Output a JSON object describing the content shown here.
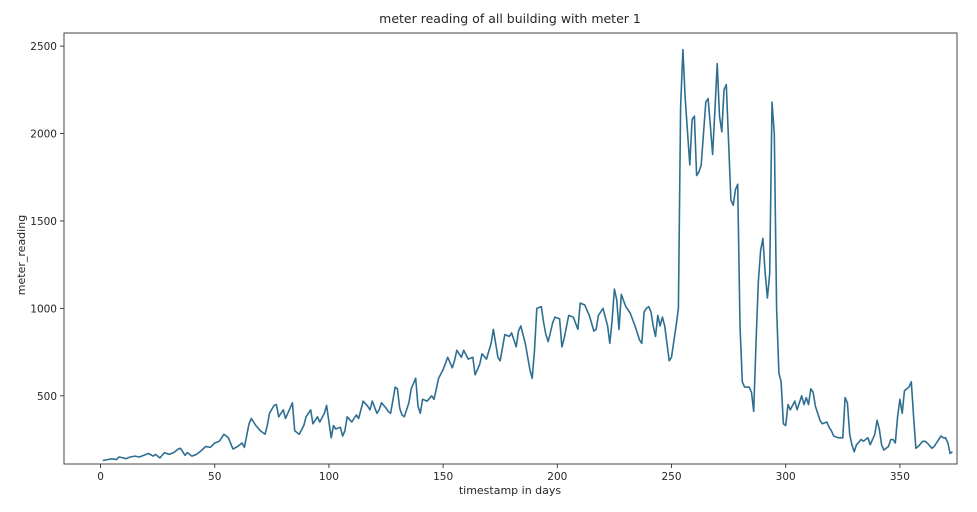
{
  "chart_data": {
    "type": "line",
    "title": "meter reading of all building with meter 1",
    "xlabel": "timestamp in days",
    "ylabel": "meter_reading",
    "xlim": [
      -16,
      375
    ],
    "ylim": [
      110,
      2575
    ],
    "xticks": [
      0,
      50,
      100,
      150,
      200,
      250,
      300,
      350
    ],
    "yticks": [
      500,
      1000,
      1500,
      2000,
      2500
    ],
    "grid": false,
    "line_color": "#2e6f91",
    "series": [
      {
        "points": [
          [
            1,
            130
          ],
          [
            3,
            135
          ],
          [
            5,
            140
          ],
          [
            7,
            135
          ],
          [
            8,
            150
          ],
          [
            10,
            145
          ],
          [
            11,
            140
          ],
          [
            13,
            150
          ],
          [
            15,
            155
          ],
          [
            17,
            150
          ],
          [
            19,
            160
          ],
          [
            21,
            170
          ],
          [
            23,
            155
          ],
          [
            24,
            165
          ],
          [
            26,
            145
          ],
          [
            28,
            175
          ],
          [
            30,
            165
          ],
          [
            32,
            175
          ],
          [
            34,
            195
          ],
          [
            35,
            200
          ],
          [
            37,
            160
          ],
          [
            38,
            175
          ],
          [
            40,
            155
          ],
          [
            42,
            165
          ],
          [
            44,
            185
          ],
          [
            46,
            210
          ],
          [
            48,
            205
          ],
          [
            50,
            230
          ],
          [
            52,
            240
          ],
          [
            54,
            280
          ],
          [
            56,
            260
          ],
          [
            58,
            195
          ],
          [
            60,
            210
          ],
          [
            62,
            230
          ],
          [
            63,
            205
          ],
          [
            65,
            340
          ],
          [
            66,
            370
          ],
          [
            68,
            330
          ],
          [
            70,
            300
          ],
          [
            72,
            280
          ],
          [
            73,
            330
          ],
          [
            74,
            400
          ],
          [
            76,
            445
          ],
          [
            77,
            450
          ],
          [
            78,
            380
          ],
          [
            80,
            420
          ],
          [
            81,
            370
          ],
          [
            82,
            400
          ],
          [
            84,
            460
          ],
          [
            85,
            300
          ],
          [
            87,
            280
          ],
          [
            89,
            330
          ],
          [
            90,
            380
          ],
          [
            92,
            420
          ],
          [
            93,
            340
          ],
          [
            95,
            380
          ],
          [
            96,
            350
          ],
          [
            98,
            400
          ],
          [
            99,
            445
          ],
          [
            101,
            260
          ],
          [
            102,
            330
          ],
          [
            103,
            310
          ],
          [
            105,
            320
          ],
          [
            106,
            270
          ],
          [
            107,
            300
          ],
          [
            108,
            380
          ],
          [
            110,
            350
          ],
          [
            112,
            390
          ],
          [
            113,
            370
          ],
          [
            115,
            470
          ],
          [
            117,
            440
          ],
          [
            118,
            420
          ],
          [
            119,
            470
          ],
          [
            121,
            400
          ],
          [
            122,
            420
          ],
          [
            123,
            460
          ],
          [
            125,
            430
          ],
          [
            126,
            410
          ],
          [
            127,
            400
          ],
          [
            129,
            550
          ],
          [
            130,
            540
          ],
          [
            131,
            430
          ],
          [
            132,
            390
          ],
          [
            133,
            380
          ],
          [
            135,
            460
          ],
          [
            136,
            540
          ],
          [
            138,
            600
          ],
          [
            139,
            440
          ],
          [
            140,
            400
          ],
          [
            141,
            480
          ],
          [
            143,
            470
          ],
          [
            145,
            500
          ],
          [
            146,
            480
          ],
          [
            148,
            600
          ],
          [
            150,
            650
          ],
          [
            152,
            720
          ],
          [
            154,
            660
          ],
          [
            155,
            700
          ],
          [
            156,
            760
          ],
          [
            158,
            720
          ],
          [
            159,
            760
          ],
          [
            161,
            710
          ],
          [
            163,
            720
          ],
          [
            164,
            620
          ],
          [
            166,
            680
          ],
          [
            167,
            740
          ],
          [
            169,
            710
          ],
          [
            171,
            800
          ],
          [
            172,
            880
          ],
          [
            174,
            720
          ],
          [
            175,
            700
          ],
          [
            177,
            850
          ],
          [
            179,
            840
          ],
          [
            180,
            860
          ],
          [
            182,
            780
          ],
          [
            183,
            870
          ],
          [
            184,
            900
          ],
          [
            186,
            800
          ],
          [
            188,
            650
          ],
          [
            189,
            600
          ],
          [
            190,
            760
          ],
          [
            191,
            1000
          ],
          [
            193,
            1010
          ],
          [
            194,
            920
          ],
          [
            195,
            850
          ],
          [
            196,
            810
          ],
          [
            198,
            920
          ],
          [
            199,
            950
          ],
          [
            201,
            940
          ],
          [
            202,
            780
          ],
          [
            203,
            830
          ],
          [
            205,
            960
          ],
          [
            207,
            950
          ],
          [
            209,
            880
          ],
          [
            210,
            1030
          ],
          [
            212,
            1020
          ],
          [
            214,
            960
          ],
          [
            216,
            870
          ],
          [
            217,
            880
          ],
          [
            218,
            960
          ],
          [
            220,
            1000
          ],
          [
            222,
            900
          ],
          [
            223,
            800
          ],
          [
            224,
            930
          ],
          [
            225,
            1110
          ],
          [
            226,
            1050
          ],
          [
            227,
            880
          ],
          [
            228,
            1080
          ],
          [
            230,
            1010
          ],
          [
            232,
            970
          ],
          [
            234,
            900
          ],
          [
            236,
            820
          ],
          [
            237,
            800
          ],
          [
            238,
            980
          ],
          [
            239,
            1000
          ],
          [
            240,
            1010
          ],
          [
            241,
            980
          ],
          [
            242,
            900
          ],
          [
            243,
            840
          ],
          [
            244,
            960
          ],
          [
            245,
            900
          ],
          [
            246,
            950
          ],
          [
            247,
            900
          ],
          [
            249,
            700
          ],
          [
            250,
            720
          ],
          [
            252,
            900
          ],
          [
            253,
            1000
          ],
          [
            254,
            2150
          ],
          [
            255,
            2480
          ],
          [
            256,
            2200
          ],
          [
            258,
            1820
          ],
          [
            259,
            2080
          ],
          [
            260,
            2100
          ],
          [
            261,
            1760
          ],
          [
            262,
            1780
          ],
          [
            263,
            1820
          ],
          [
            265,
            2180
          ],
          [
            266,
            2200
          ],
          [
            267,
            2050
          ],
          [
            268,
            1880
          ],
          [
            269,
            2130
          ],
          [
            270,
            2400
          ],
          [
            271,
            2100
          ],
          [
            272,
            2010
          ],
          [
            273,
            2250
          ],
          [
            274,
            2280
          ],
          [
            275,
            1950
          ],
          [
            276,
            1620
          ],
          [
            277,
            1590
          ],
          [
            278,
            1680
          ],
          [
            279,
            1710
          ],
          [
            280,
            900
          ],
          [
            281,
            580
          ],
          [
            282,
            550
          ],
          [
            284,
            550
          ],
          [
            285,
            520
          ],
          [
            286,
            410
          ],
          [
            287,
            800
          ],
          [
            288,
            1150
          ],
          [
            289,
            1330
          ],
          [
            290,
            1400
          ],
          [
            291,
            1200
          ],
          [
            292,
            1060
          ],
          [
            293,
            1200
          ],
          [
            294,
            2180
          ],
          [
            295,
            2000
          ],
          [
            296,
            1000
          ],
          [
            297,
            630
          ],
          [
            298,
            580
          ],
          [
            299,
            340
          ],
          [
            300,
            330
          ],
          [
            301,
            450
          ],
          [
            302,
            420
          ],
          [
            304,
            470
          ],
          [
            305,
            420
          ],
          [
            307,
            500
          ],
          [
            308,
            450
          ],
          [
            309,
            490
          ],
          [
            310,
            450
          ],
          [
            311,
            540
          ],
          [
            312,
            520
          ],
          [
            313,
            440
          ],
          [
            315,
            360
          ],
          [
            316,
            340
          ],
          [
            318,
            350
          ],
          [
            319,
            320
          ],
          [
            320,
            300
          ],
          [
            321,
            270
          ],
          [
            323,
            260
          ],
          [
            325,
            260
          ],
          [
            326,
            490
          ],
          [
            327,
            460
          ],
          [
            328,
            280
          ],
          [
            329,
            220
          ],
          [
            330,
            180
          ],
          [
            331,
            220
          ],
          [
            333,
            250
          ],
          [
            334,
            240
          ],
          [
            336,
            260
          ],
          [
            337,
            220
          ],
          [
            339,
            280
          ],
          [
            340,
            360
          ],
          [
            341,
            310
          ],
          [
            342,
            220
          ],
          [
            343,
            190
          ],
          [
            345,
            210
          ],
          [
            346,
            250
          ],
          [
            347,
            250
          ],
          [
            348,
            230
          ],
          [
            349,
            380
          ],
          [
            350,
            480
          ],
          [
            351,
            400
          ],
          [
            352,
            530
          ],
          [
            354,
            550
          ],
          [
            355,
            580
          ],
          [
            356,
            380
          ],
          [
            357,
            200
          ],
          [
            358,
            210
          ],
          [
            360,
            240
          ],
          [
            361,
            240
          ],
          [
            362,
            230
          ],
          [
            364,
            200
          ],
          [
            365,
            210
          ],
          [
            366,
            230
          ],
          [
            367,
            250
          ],
          [
            368,
            270
          ],
          [
            369,
            260
          ],
          [
            370,
            260
          ],
          [
            371,
            230
          ],
          [
            372,
            170
          ],
          [
            373,
            180
          ]
        ]
      }
    ]
  }
}
